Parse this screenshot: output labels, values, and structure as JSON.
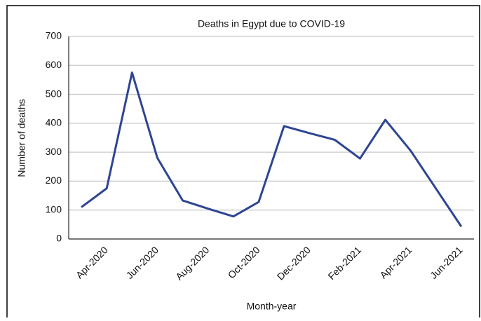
{
  "chart_data": {
    "type": "line",
    "title": "Deaths in Egypt due to COVID-19",
    "x_label": "Month-year",
    "y_label": "Number of deaths",
    "categories": [
      null,
      "Apr-2020",
      null,
      "Jun-2020",
      null,
      "Aug-2020",
      null,
      "Oct-2020",
      null,
      "Dec-2020",
      null,
      "Feb-2021",
      null,
      "Apr-2021",
      null,
      "Jun-2021"
    ],
    "series": [
      {
        "name": "Deaths",
        "color": "#2e4593",
        "values": [
          110,
          175,
          575,
          280,
          133,
          105,
          78,
          128,
          390,
          366,
          343,
          278,
          412,
          305,
          174,
          43
        ]
      }
    ],
    "ylim": [
      0,
      700
    ],
    "yticks": [
      0,
      100,
      200,
      300,
      400,
      500,
      600,
      700
    ],
    "grid": true
  }
}
